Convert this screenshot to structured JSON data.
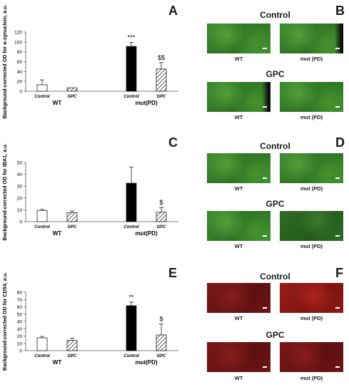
{
  "chart_data": [
    {
      "type": "bar",
      "panel": "A",
      "ylabel": "Background-corrected OD for α-synuclein, a.u.",
      "ylim": [
        0,
        120
      ],
      "yticks": [
        0,
        20,
        40,
        60,
        80,
        100,
        120
      ],
      "categories": [
        "Control",
        "GPC",
        "Control",
        "GPC"
      ],
      "groups": [
        "WT",
        "mut(PD)"
      ],
      "values": [
        13,
        7,
        91,
        45
      ],
      "errors": [
        10,
        0,
        8,
        13
      ],
      "annotations": [
        "",
        "",
        "***",
        "$$"
      ]
    },
    {
      "type": "bar",
      "panel": "C",
      "ylabel": "Background-corrected OD for IBA1, a.u.",
      "ylim": [
        0,
        50
      ],
      "yticks": [
        0,
        10,
        20,
        30,
        40,
        50
      ],
      "categories": [
        "Control",
        "GPC",
        "Control",
        "GPC"
      ],
      "groups": [
        "WT",
        "mut(PD)"
      ],
      "values": [
        9.5,
        7.5,
        32.5,
        8
      ],
      "errors": [
        0.8,
        1.5,
        13.5,
        4
      ],
      "annotations": [
        "",
        "",
        "",
        "$"
      ]
    },
    {
      "type": "bar",
      "panel": "E",
      "ylabel": "Background-corrected OD for CD54, a.u.",
      "ylim": [
        0,
        80
      ],
      "yticks": [
        0,
        10,
        20,
        30,
        40,
        50,
        60,
        70,
        80
      ],
      "categories": [
        "Control",
        "GPC",
        "Control",
        "GPC"
      ],
      "groups": [
        "WT",
        "mut(PD)"
      ],
      "values": [
        17.5,
        14,
        61.5,
        21.5
      ],
      "errors": [
        2,
        3,
        5,
        15
      ],
      "annotations": [
        "",
        "",
        "**",
        "$"
      ]
    }
  ],
  "image_panels": [
    {
      "letter": "B",
      "group1": "Control",
      "group2": "GPC",
      "label_left": "WT",
      "label_right": "mut (PD)",
      "colors": [
        "#3e8a2f",
        "#2b6f22"
      ]
    },
    {
      "letter": "D",
      "group1": "Control",
      "group2": "GPC",
      "label_left": "WT",
      "label_right": "mut (PD)",
      "colors": [
        "#3e8a2f",
        "#2b6f22"
      ]
    },
    {
      "letter": "F",
      "group1": "Control",
      "group2": "GPC",
      "label_left": "WT",
      "label_right": "mut (PD)",
      "colors": [
        "#7a1818",
        "#9a1d18"
      ]
    }
  ]
}
